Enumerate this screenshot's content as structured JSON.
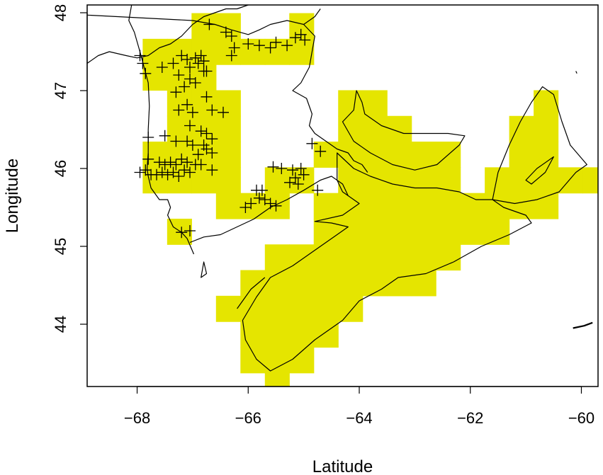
{
  "chart_data": {
    "type": "map",
    "title": "",
    "xlabel": "Latitude",
    "ylabel": "Longitude",
    "xlim": [
      -68.9,
      -59.7
    ],
    "ylim": [
      43.2,
      48.1
    ],
    "x_ticks": [
      -68,
      -66,
      -64,
      -62,
      -60
    ],
    "y_ticks": [
      44,
      45,
      46,
      47,
      48
    ],
    "x_tick_labels": [
      "−68",
      "−66",
      "−64",
      "−62",
      "−60"
    ],
    "y_tick_labels": [
      "44",
      "45",
      "46",
      "47",
      "48"
    ],
    "cell_size_deg": [
      0.44,
      0.33
    ],
    "highlight_color": "#e5e500",
    "cells": [
      [
        -66.8,
        47.83
      ],
      [
        -66.36,
        47.83
      ],
      [
        -65.04,
        47.83
      ],
      [
        -67.68,
        47.5
      ],
      [
        -67.24,
        47.5
      ],
      [
        -66.8,
        47.5
      ],
      [
        -66.36,
        47.5
      ],
      [
        -65.92,
        47.5
      ],
      [
        -65.48,
        47.5
      ],
      [
        -65.04,
        47.5
      ],
      [
        -67.68,
        47.17
      ],
      [
        -67.24,
        47.17
      ],
      [
        -66.8,
        47.17
      ],
      [
        -67.24,
        46.84
      ],
      [
        -66.8,
        46.84
      ],
      [
        -66.36,
        46.84
      ],
      [
        -64.16,
        46.84
      ],
      [
        -63.72,
        46.84
      ],
      [
        -60.64,
        46.84
      ],
      [
        -67.24,
        46.51
      ],
      [
        -66.8,
        46.51
      ],
      [
        -66.36,
        46.51
      ],
      [
        -64.16,
        46.51
      ],
      [
        -63.72,
        46.51
      ],
      [
        -63.28,
        46.51
      ],
      [
        -61.08,
        46.51
      ],
      [
        -60.64,
        46.51
      ],
      [
        -67.68,
        46.18
      ],
      [
        -67.24,
        46.18
      ],
      [
        -66.8,
        46.18
      ],
      [
        -66.36,
        46.18
      ],
      [
        -64.6,
        46.18
      ],
      [
        -64.16,
        46.18
      ],
      [
        -63.72,
        46.18
      ],
      [
        -63.28,
        46.18
      ],
      [
        -62.84,
        46.18
      ],
      [
        -62.4,
        46.18
      ],
      [
        -61.08,
        46.18
      ],
      [
        -60.64,
        46.18
      ],
      [
        -67.68,
        45.85
      ],
      [
        -67.24,
        45.85
      ],
      [
        -66.8,
        45.85
      ],
      [
        -66.36,
        45.85
      ],
      [
        -65.48,
        45.85
      ],
      [
        -65.04,
        45.85
      ],
      [
        -64.16,
        45.85
      ],
      [
        -63.72,
        45.85
      ],
      [
        -63.28,
        45.85
      ],
      [
        -62.84,
        45.85
      ],
      [
        -62.4,
        45.85
      ],
      [
        -61.52,
        45.85
      ],
      [
        -61.08,
        45.85
      ],
      [
        -60.64,
        45.85
      ],
      [
        -60.2,
        45.85
      ],
      [
        -59.76,
        45.85
      ],
      [
        -66.36,
        45.52
      ],
      [
        -65.92,
        45.52
      ],
      [
        -65.48,
        45.52
      ],
      [
        -64.6,
        45.52
      ],
      [
        -64.16,
        45.52
      ],
      [
        -63.72,
        45.52
      ],
      [
        -63.28,
        45.52
      ],
      [
        -62.84,
        45.52
      ],
      [
        -62.4,
        45.52
      ],
      [
        -61.96,
        45.52
      ],
      [
        -61.52,
        45.52
      ],
      [
        -61.08,
        45.52
      ],
      [
        -60.64,
        45.52
      ],
      [
        -67.24,
        45.19
      ],
      [
        -64.6,
        45.19
      ],
      [
        -64.16,
        45.19
      ],
      [
        -63.72,
        45.19
      ],
      [
        -63.28,
        45.19
      ],
      [
        -62.84,
        45.19
      ],
      [
        -62.4,
        45.19
      ],
      [
        -61.96,
        45.19
      ],
      [
        -61.52,
        45.19
      ],
      [
        -65.48,
        44.86
      ],
      [
        -65.04,
        44.86
      ],
      [
        -64.6,
        44.86
      ],
      [
        -64.16,
        44.86
      ],
      [
        -63.72,
        44.86
      ],
      [
        -63.28,
        44.86
      ],
      [
        -62.84,
        44.86
      ],
      [
        -62.4,
        44.86
      ],
      [
        -65.92,
        44.53
      ],
      [
        -65.48,
        44.53
      ],
      [
        -65.04,
        44.53
      ],
      [
        -64.6,
        44.53
      ],
      [
        -64.16,
        44.53
      ],
      [
        -63.72,
        44.53
      ],
      [
        -63.28,
        44.53
      ],
      [
        -62.84,
        44.53
      ],
      [
        -66.36,
        44.2
      ],
      [
        -65.92,
        44.2
      ],
      [
        -65.48,
        44.2
      ],
      [
        -65.04,
        44.2
      ],
      [
        -64.6,
        44.2
      ],
      [
        -64.16,
        44.2
      ],
      [
        -65.92,
        43.87
      ],
      [
        -65.48,
        43.87
      ],
      [
        -65.04,
        43.87
      ],
      [
        -64.6,
        43.87
      ],
      [
        -65.92,
        43.54
      ],
      [
        -65.48,
        43.54
      ],
      [
        -65.04,
        43.54
      ],
      [
        -65.48,
        43.3
      ]
    ],
    "points": [
      [
        -66.7,
        47.85
      ],
      [
        -66.4,
        47.75
      ],
      [
        -66.3,
        47.7
      ],
      [
        -66.25,
        47.55
      ],
      [
        -66.3,
        47.45
      ],
      [
        -66.0,
        47.6
      ],
      [
        -65.8,
        47.58
      ],
      [
        -65.6,
        47.55
      ],
      [
        -65.5,
        47.62
      ],
      [
        -65.3,
        47.58
      ],
      [
        -65.15,
        47.68
      ],
      [
        -65.05,
        47.72
      ],
      [
        -64.98,
        47.65
      ],
      [
        -67.95,
        47.45
      ],
      [
        -67.9,
        47.35
      ],
      [
        -67.85,
        47.22
      ],
      [
        -67.55,
        47.3
      ],
      [
        -67.35,
        47.35
      ],
      [
        -67.2,
        47.45
      ],
      [
        -67.1,
        47.4
      ],
      [
        -67.05,
        47.3
      ],
      [
        -66.95,
        47.42
      ],
      [
        -66.9,
        47.35
      ],
      [
        -66.85,
        47.45
      ],
      [
        -66.8,
        47.38
      ],
      [
        -66.75,
        47.25
      ],
      [
        -67.25,
        47.2
      ],
      [
        -67.15,
        47.05
      ],
      [
        -67.05,
        47.15
      ],
      [
        -66.95,
        47.1
      ],
      [
        -66.8,
        47.25
      ],
      [
        -67.3,
        46.98
      ],
      [
        -67.1,
        46.82
      ],
      [
        -66.75,
        46.92
      ],
      [
        -66.65,
        46.75
      ],
      [
        -66.45,
        46.72
      ],
      [
        -67.25,
        46.75
      ],
      [
        -67.0,
        46.72
      ],
      [
        -67.05,
        46.55
      ],
      [
        -66.85,
        46.48
      ],
      [
        -66.75,
        46.45
      ],
      [
        -66.65,
        46.38
      ],
      [
        -67.8,
        46.4
      ],
      [
        -67.5,
        46.42
      ],
      [
        -67.3,
        46.35
      ],
      [
        -67.1,
        46.35
      ],
      [
        -67.0,
        46.3
      ],
      [
        -66.9,
        46.18
      ],
      [
        -66.8,
        46.3
      ],
      [
        -66.75,
        46.25
      ],
      [
        -66.65,
        46.2
      ],
      [
        -67.8,
        46.12
      ],
      [
        -67.6,
        46.08
      ],
      [
        -67.5,
        46.05
      ],
      [
        -67.4,
        46.08
      ],
      [
        -67.3,
        46.05
      ],
      [
        -67.2,
        46.12
      ],
      [
        -67.1,
        46.08
      ],
      [
        -66.95,
        46.05
      ],
      [
        -66.85,
        46.05
      ],
      [
        -66.65,
        45.98
      ],
      [
        -67.95,
        45.95
      ],
      [
        -67.85,
        45.98
      ],
      [
        -67.75,
        45.92
      ],
      [
        -67.65,
        45.92
      ],
      [
        -67.55,
        45.95
      ],
      [
        -67.45,
        45.92
      ],
      [
        -67.35,
        45.95
      ],
      [
        -67.25,
        45.9
      ],
      [
        -67.15,
        45.98
      ],
      [
        -67.05,
        45.95
      ],
      [
        -65.55,
        46.02
      ],
      [
        -65.4,
        46.0
      ],
      [
        -65.2,
        45.98
      ],
      [
        -65.05,
        46.0
      ],
      [
        -65.0,
        45.92
      ],
      [
        -65.15,
        45.88
      ],
      [
        -65.25,
        45.82
      ],
      [
        -65.1,
        45.8
      ],
      [
        -65.85,
        45.72
      ],
      [
        -65.8,
        45.62
      ],
      [
        -65.75,
        45.72
      ],
      [
        -65.7,
        45.6
      ],
      [
        -65.6,
        45.55
      ],
      [
        -65.5,
        45.52
      ],
      [
        -65.95,
        45.55
      ],
      [
        -66.05,
        45.5
      ],
      [
        -64.85,
        46.32
      ],
      [
        -64.7,
        46.22
      ],
      [
        -64.75,
        45.72
      ],
      [
        -67.2,
        45.18
      ],
      [
        -67.05,
        45.2
      ]
    ],
    "mainland_edge": [
      [
        -68.9,
        47.35
      ],
      [
        -68.7,
        47.45
      ],
      [
        -68.5,
        47.5
      ],
      [
        -68.2,
        47.45
      ],
      [
        -68.0,
        47.42
      ],
      [
        -67.8,
        47.45
      ],
      [
        -67.6,
        47.55
      ],
      [
        -67.4,
        47.6
      ],
      [
        -67.2,
        47.7
      ],
      [
        -67.0,
        47.85
      ],
      [
        -66.8,
        47.95
      ],
      [
        -66.6,
        48.0
      ],
      [
        -66.4,
        48.05
      ],
      [
        -66.2,
        48.05
      ],
      [
        -66.0,
        48.1
      ]
    ],
    "maine_boundary": [
      [
        -68.1,
        48.1
      ],
      [
        -68.15,
        47.9
      ],
      [
        -68.05,
        47.75
      ],
      [
        -67.95,
        47.5
      ],
      [
        -67.8,
        47.1
      ],
      [
        -67.78,
        46.8
      ],
      [
        -67.8,
        46.5
      ],
      [
        -67.8,
        46.2
      ],
      [
        -67.82,
        46.0
      ],
      [
        -67.8,
        45.9
      ],
      [
        -67.75,
        45.75
      ],
      [
        -67.6,
        45.6
      ],
      [
        -67.45,
        45.6
      ],
      [
        -67.4,
        45.5
      ],
      [
        -67.45,
        45.4
      ],
      [
        -67.35,
        45.25
      ],
      [
        -67.2,
        45.18
      ],
      [
        -67.1,
        45.1
      ],
      [
        -66.98,
        44.9
      ]
    ],
    "chaleur_bay": [
      [
        -68.9,
        47.97
      ],
      [
        -67.0,
        47.9
      ],
      [
        -66.6,
        47.85
      ],
      [
        -66.3,
        47.78
      ],
      [
        -66.0,
        47.72
      ],
      [
        -65.8,
        47.78
      ],
      [
        -65.6,
        47.85
      ],
      [
        -65.3,
        47.9
      ],
      [
        -65.0,
        47.85
      ],
      [
        -64.8,
        47.95
      ],
      [
        -64.7,
        48.05
      ]
    ],
    "nb_east_coast": [
      [
        -65.0,
        47.85
      ],
      [
        -64.8,
        47.7
      ],
      [
        -64.85,
        47.5
      ],
      [
        -64.9,
        47.3
      ],
      [
        -65.05,
        47.1
      ],
      [
        -65.2,
        47.0
      ],
      [
        -64.95,
        46.9
      ],
      [
        -64.85,
        46.7
      ],
      [
        -64.9,
        46.55
      ],
      [
        -64.8,
        46.45
      ],
      [
        -64.6,
        46.35
      ],
      [
        -64.4,
        46.25
      ],
      [
        -64.2,
        46.2
      ],
      [
        -64.1,
        46.1
      ],
      [
        -63.95,
        46.05
      ],
      [
        -63.85,
        45.95
      ]
    ],
    "fundy_north": [
      [
        -67.05,
        45.05
      ],
      [
        -66.8,
        45.12
      ],
      [
        -66.5,
        45.15
      ],
      [
        -66.2,
        45.25
      ],
      [
        -65.9,
        45.35
      ],
      [
        -65.6,
        45.5
      ],
      [
        -65.3,
        45.6
      ],
      [
        -65.0,
        45.72
      ],
      [
        -64.7,
        45.85
      ],
      [
        -64.5,
        45.9
      ],
      [
        -64.3,
        45.8
      ],
      [
        -64.2,
        45.65
      ]
    ],
    "nova_scotia": [
      [
        -64.4,
        46.2
      ],
      [
        -64.1,
        46.0
      ],
      [
        -63.8,
        45.9
      ],
      [
        -63.4,
        45.8
      ],
      [
        -63.0,
        45.75
      ],
      [
        -62.6,
        45.75
      ],
      [
        -62.2,
        45.7
      ],
      [
        -61.9,
        45.6
      ],
      [
        -61.6,
        45.6
      ],
      [
        -61.4,
        45.5
      ],
      [
        -61.0,
        45.4
      ],
      [
        -60.9,
        45.3
      ],
      [
        -61.3,
        45.15
      ],
      [
        -61.8,
        45.0
      ],
      [
        -62.3,
        44.8
      ],
      [
        -62.8,
        44.65
      ],
      [
        -63.3,
        44.6
      ],
      [
        -63.6,
        44.45
      ],
      [
        -64.0,
        44.3
      ],
      [
        -64.3,
        44.05
      ],
      [
        -64.8,
        43.8
      ],
      [
        -65.2,
        43.55
      ],
      [
        -65.6,
        43.4
      ],
      [
        -65.85,
        43.55
      ],
      [
        -66.05,
        43.8
      ],
      [
        -66.1,
        44.05
      ],
      [
        -65.85,
        44.35
      ],
      [
        -65.6,
        44.6
      ],
      [
        -65.2,
        44.75
      ],
      [
        -64.8,
        44.95
      ],
      [
        -64.4,
        45.15
      ],
      [
        -64.2,
        45.25
      ],
      [
        -64.5,
        45.3
      ],
      [
        -64.8,
        45.32
      ],
      [
        -64.3,
        45.4
      ],
      [
        -64.0,
        45.55
      ],
      [
        -64.3,
        45.7
      ],
      [
        -64.4,
        45.85
      ],
      [
        -64.4,
        46.2
      ]
    ],
    "pei": [
      [
        -64.3,
        46.6
      ],
      [
        -64.1,
        46.75
      ],
      [
        -64.05,
        47.0
      ],
      [
        -63.95,
        46.85
      ],
      [
        -63.9,
        46.7
      ],
      [
        -63.6,
        46.55
      ],
      [
        -63.2,
        46.45
      ],
      [
        -62.8,
        46.45
      ],
      [
        -62.4,
        46.45
      ],
      [
        -62.1,
        46.42
      ],
      [
        -62.2,
        46.3
      ],
      [
        -62.6,
        46.05
      ],
      [
        -63.0,
        45.98
      ],
      [
        -63.4,
        46.05
      ],
      [
        -63.8,
        46.2
      ],
      [
        -64.1,
        46.35
      ],
      [
        -64.3,
        46.6
      ]
    ],
    "cape_breton": [
      [
        -61.6,
        45.6
      ],
      [
        -61.5,
        45.95
      ],
      [
        -61.3,
        46.3
      ],
      [
        -61.1,
        46.6
      ],
      [
        -60.9,
        46.85
      ],
      [
        -60.7,
        47.05
      ],
      [
        -60.5,
        46.95
      ],
      [
        -60.35,
        46.6
      ],
      [
        -60.2,
        46.3
      ],
      [
        -59.9,
        46.05
      ],
      [
        -60.1,
        45.95
      ],
      [
        -60.4,
        45.7
      ],
      [
        -60.8,
        45.6
      ],
      [
        -61.2,
        45.55
      ],
      [
        -61.6,
        45.6
      ]
    ],
    "bras_dor": [
      [
        -61.0,
        45.85
      ],
      [
        -60.8,
        46.0
      ],
      [
        -60.5,
        46.15
      ],
      [
        -60.65,
        45.95
      ],
      [
        -60.9,
        45.8
      ],
      [
        -61.0,
        45.85
      ]
    ],
    "ns_inner_coast": [
      [
        -66.2,
        44.2
      ],
      [
        -65.95,
        44.45
      ],
      [
        -65.7,
        44.6
      ]
    ],
    "grand_manan": [
      [
        -66.8,
        44.8
      ],
      [
        -66.75,
        44.65
      ],
      [
        -66.85,
        44.6
      ],
      [
        -66.8,
        44.8
      ]
    ],
    "magdalen_dot": [
      [
        -60.1,
        47.25
      ],
      [
        -60.08,
        47.22
      ]
    ],
    "sable_island": [
      [
        -60.15,
        43.95
      ],
      [
        -59.95,
        43.98
      ],
      [
        -59.8,
        44.02
      ]
    ]
  }
}
